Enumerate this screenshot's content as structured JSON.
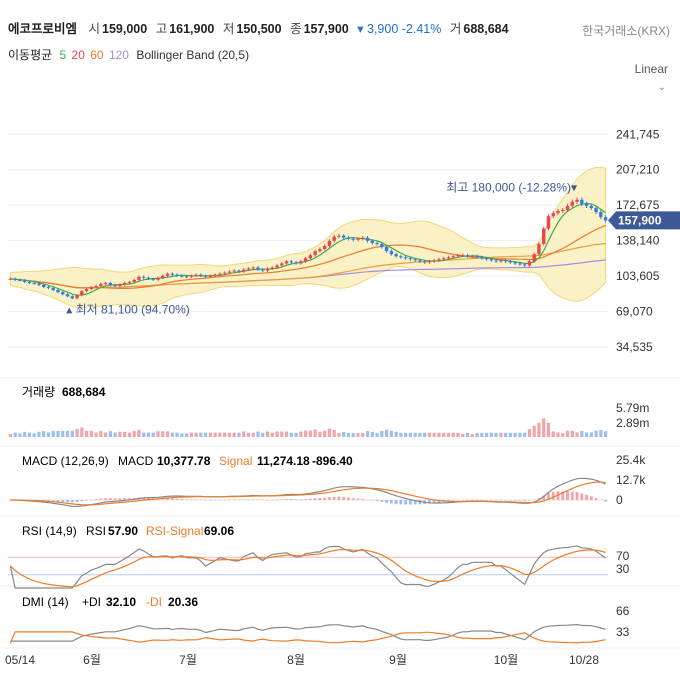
{
  "header": {
    "name": "에코프로비엠",
    "open_label": "시",
    "open": "159,000",
    "high_label": "고",
    "high": "161,900",
    "low_label": "저",
    "low": "150,500",
    "close_label": "종",
    "close": "157,900",
    "change": "▾ 3,900",
    "change_pct": "-2.41%",
    "volume_label": "거",
    "volume": "688,684",
    "exchange": "한국거래소(KRX)"
  },
  "ma_legend": {
    "label": "이동평균",
    "ma5": "5",
    "ma20": "20",
    "ma60": "60",
    "ma120": "120",
    "bb": "Bollinger Band (20,5)"
  },
  "scale": {
    "label": "Linear",
    "chevron": "chevron-down-icon"
  },
  "colors": {
    "up": "#e8474f",
    "down": "#2f7de1",
    "ma5": "#3fae49",
    "ma20": "#ee7b2a",
    "ma60": "#e8a040",
    "ma120": "#a98ce6",
    "bb_fill": "#fbf1c6",
    "bb_line": "#f2d779",
    "badge": "#3d5a96"
  },
  "chart_data": [
    {
      "type": "line",
      "title": "",
      "ylim": [
        20000,
        280000
      ],
      "ticks": [
        "241,745",
        "207,210",
        "172,675",
        "138,140",
        "103,605",
        "69,070",
        "34,535"
      ],
      "last_price": "157,900",
      "max_note": "최고 180,000 (-12.28%)▾",
      "min_note": "▴ 최저 81,100 (94.70%)",
      "x_labels": [
        "05/14",
        "6월",
        "7월",
        "8월",
        "9월",
        "10월",
        "10/28"
      ],
      "close": [
        101000,
        100000,
        99500,
        98000,
        97000,
        96500,
        95000,
        93000,
        92000,
        90000,
        88000,
        86000,
        84000,
        82000,
        85000,
        89000,
        91000,
        93000,
        94000,
        96000,
        97000,
        95000,
        94000,
        95500,
        97000,
        98000,
        100000,
        103000,
        102000,
        101000,
        100000,
        102000,
        104000,
        106000,
        105000,
        104000,
        103500,
        103000,
        104000,
        105000,
        104000,
        103000,
        104000,
        105000,
        106000,
        107000,
        108000,
        109000,
        108000,
        110000,
        111000,
        112000,
        110000,
        109000,
        111000,
        112000,
        114000,
        116000,
        118000,
        117000,
        116000,
        118000,
        121000,
        124000,
        128000,
        130000,
        133000,
        138000,
        142000,
        143000,
        141000,
        140000,
        139000,
        140000,
        141000,
        138000,
        136000,
        135000,
        132000,
        128000,
        125000,
        123000,
        122000,
        121000,
        120000,
        119000,
        118000,
        117000,
        118000,
        119000,
        120000,
        121000,
        122000,
        123000,
        124000,
        124000,
        123000,
        123000,
        122000,
        121000,
        120000,
        119000,
        118000,
        119000,
        118000,
        117000,
        116000,
        115000,
        114000,
        118000,
        125000,
        135000,
        150000,
        162000,
        165000,
        167000,
        168000,
        172000,
        176000,
        178000,
        174000,
        172000,
        170000,
        166000,
        161000,
        157900
      ],
      "volume_label": "거래량",
      "volume_value": "688,684",
      "vol_ticks": [
        "5.79m",
        "2.89m"
      ],
      "macd_title": "MACD (12,26,9)",
      "macd_label": "MACD",
      "macd_value": "10,377.78",
      "signal_label": "Signal",
      "signal_value": "11,274.18",
      "hist_value": "-896.40",
      "macd_ticks": [
        "25.4k",
        "12.7k",
        "0"
      ],
      "rsi_title": "RSI (14,9)",
      "rsi_label": "RSI",
      "rsi_value": "57.90",
      "rsi_signal_label": "RSI-Signal",
      "rsi_signal_value": "69.06",
      "rsi_ticks": [
        "70",
        "30"
      ],
      "dmi_title": "DMI (14)",
      "pdi_label": "+DI",
      "pdi_value": "32.10",
      "mdi_label": "-DI",
      "mdi_value": "20.36",
      "dmi_ticks": [
        "66",
        "33"
      ]
    }
  ]
}
